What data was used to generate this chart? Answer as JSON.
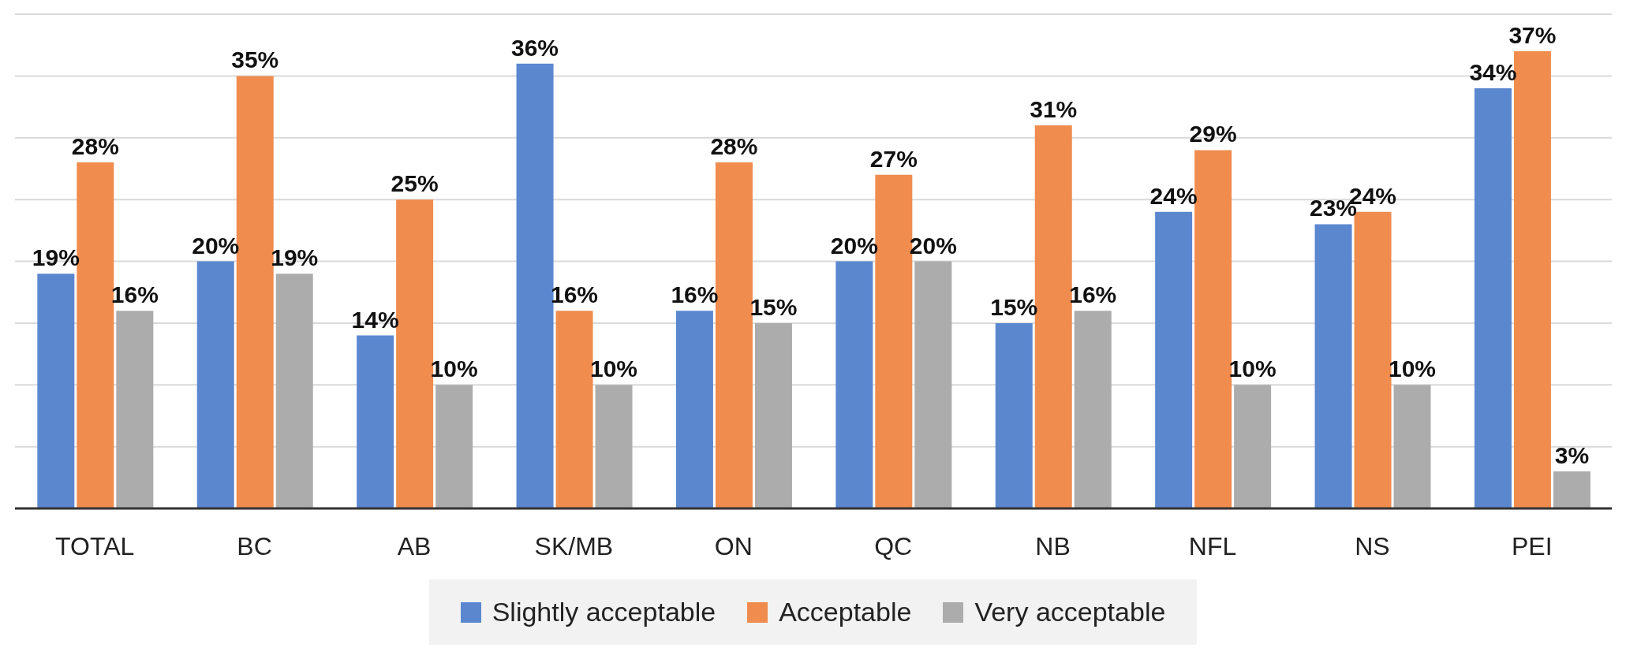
{
  "chart_data": {
    "type": "bar",
    "categories": [
      "TOTAL",
      "BC",
      "AB",
      "SK/MB",
      "ON",
      "QC",
      "NB",
      "NFL",
      "NS",
      "PEI"
    ],
    "series": [
      {
        "name": "Slightly acceptable",
        "color": "#5b87cf",
        "values": [
          19,
          20,
          14,
          36,
          16,
          20,
          15,
          24,
          23,
          34
        ],
        "value_labels": [
          "19%",
          "20%",
          "14%",
          "36%",
          "16%",
          "20%",
          "15%",
          "24%",
          "23%",
          "34%"
        ]
      },
      {
        "name": "Acceptable",
        "color": "#ef8c4e",
        "values": [
          28,
          35,
          25,
          16,
          28,
          27,
          31,
          29,
          24,
          37
        ],
        "value_labels": [
          "28%",
          "35%",
          "25%",
          "16%",
          "28%",
          "27%",
          "31%",
          "29%",
          "24%",
          "37%"
        ]
      },
      {
        "name": "Very acceptable",
        "color": "#acacac",
        "values": [
          16,
          19,
          10,
          10,
          15,
          20,
          16,
          10,
          10,
          3
        ],
        "value_labels": [
          "16%",
          "19%",
          "10%",
          "10%",
          "15%",
          "20%",
          "16%",
          "10%",
          "10%",
          "3%"
        ]
      }
    ],
    "tick_labels": "x",
    "grid": "y",
    "legend": "bottom"
  }
}
